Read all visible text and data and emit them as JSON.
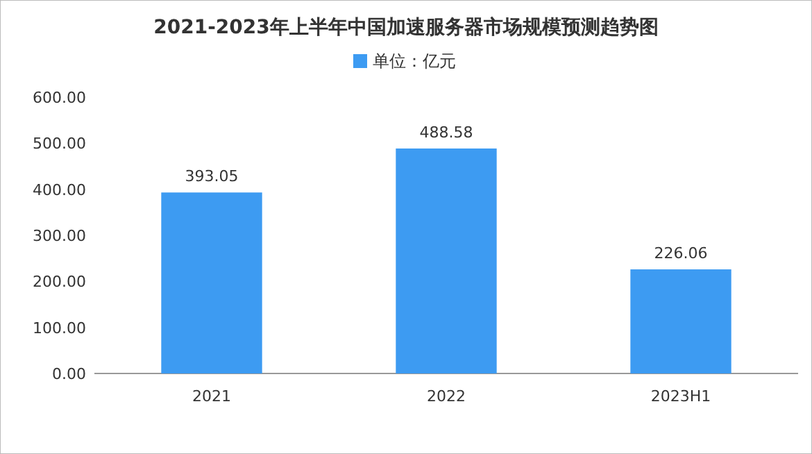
{
  "chart_data": {
    "type": "bar",
    "title": "2021-2023年上半年中国加速服务器市场规模预测趋势图",
    "categories": [
      "2021",
      "2022",
      "2023H1"
    ],
    "series": [
      {
        "name": "单位：亿元",
        "color": "#3d9bf2",
        "values": [
          393.05,
          488.58,
          226.06
        ]
      }
    ],
    "ylim": [
      0,
      600
    ],
    "yticks": [
      {
        "value": 0,
        "label": "0.00"
      },
      {
        "value": 100,
        "label": "100.00"
      },
      {
        "value": 200,
        "label": "200.00"
      },
      {
        "value": 300,
        "label": "300.00"
      },
      {
        "value": 400,
        "label": "400.00"
      },
      {
        "value": 500,
        "label": "500.00"
      },
      {
        "value": 600,
        "label": "600.00"
      }
    ],
    "data_labels": true,
    "legend": "top",
    "grid": false
  }
}
